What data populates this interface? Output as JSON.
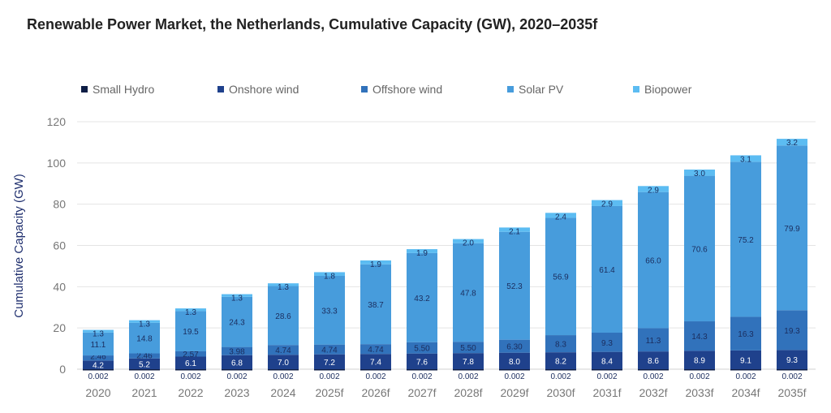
{
  "chart_data": {
    "type": "bar",
    "stacked": true,
    "title": "Renewable Power Market, the Netherlands, Cumulative Capacity (GW), 2020–2035f",
    "xlabel": "",
    "ylabel": "Cumulative Capacity (GW)",
    "ylim": [
      0,
      120
    ],
    "yticks": [
      0,
      20,
      40,
      60,
      80,
      100,
      120
    ],
    "grid": true,
    "legend_position": "top",
    "categories": [
      "2020",
      "2021",
      "2022",
      "2023",
      "2024",
      "2025f",
      "2026f",
      "2027f",
      "2028f",
      "2029f",
      "2030f",
      "2031f",
      "2032f",
      "2033f",
      "2034f",
      "2035f"
    ],
    "series": [
      {
        "name": "Small Hydro",
        "color": "#0e1d45",
        "labels": [
          "0.002",
          "0.002",
          "0.002",
          "0.002",
          "0.002",
          "0.002",
          "0.002",
          "0.002",
          "0.002",
          "0.002",
          "0.002",
          "0.002",
          "0.002",
          "0.002",
          "0.002",
          "0.002"
        ],
        "values": [
          0.002,
          0.002,
          0.002,
          0.002,
          0.002,
          0.002,
          0.002,
          0.002,
          0.002,
          0.002,
          0.002,
          0.002,
          0.002,
          0.002,
          0.002,
          0.002
        ]
      },
      {
        "name": "Onshore wind",
        "color": "#1f418c",
        "labels": [
          "4.2",
          "5.2",
          "6.1",
          "6.8",
          "7.0",
          "7.2",
          "7.4",
          "7.6",
          "7.8",
          "8.0",
          "8.2",
          "8.4",
          "8.6",
          "8.9",
          "9.1",
          "9.3"
        ],
        "values": [
          4.2,
          5.2,
          6.1,
          6.8,
          7.0,
          7.2,
          7.4,
          7.6,
          7.8,
          8.0,
          8.2,
          8.4,
          8.6,
          8.9,
          9.1,
          9.3
        ]
      },
      {
        "name": "Offshore wind",
        "color": "#3172bb",
        "labels": [
          "2.46",
          "2.46",
          "2.57",
          "3.98",
          "4.74",
          "4.74",
          "4.74",
          "5.50",
          "5.50",
          "6.30",
          "8.3",
          "9.3",
          "11.3",
          "14.3",
          "16.3",
          "19.3"
        ],
        "values": [
          2.46,
          2.46,
          2.57,
          3.98,
          4.74,
          4.74,
          4.74,
          5.5,
          5.5,
          6.3,
          8.3,
          9.3,
          11.3,
          14.3,
          16.3,
          19.3
        ]
      },
      {
        "name": "Solar PV",
        "color": "#479cdc",
        "labels": [
          "11.1",
          "14.8",
          "19.5",
          "24.3",
          "28.6",
          "33.3",
          "38.7",
          "43.2",
          "47.8",
          "52.3",
          "56.9",
          "61.4",
          "66.0",
          "70.6",
          "75.2",
          "79.9"
        ],
        "values": [
          11.1,
          14.8,
          19.5,
          24.3,
          28.6,
          33.3,
          38.7,
          43.2,
          47.8,
          52.3,
          56.9,
          61.4,
          66.0,
          70.6,
          75.2,
          79.9
        ]
      },
      {
        "name": "Biopower",
        "color": "#5cbcf2",
        "labels": [
          "1.3",
          "1.3",
          "1.3",
          "1.3",
          "1.3",
          "1.8",
          "1.9",
          "1.9",
          "2.0",
          "2.1",
          "2.4",
          "2.9",
          "2.9",
          "3.0",
          "3.1",
          "3.2"
        ],
        "values": [
          1.3,
          1.3,
          1.3,
          1.3,
          1.3,
          1.8,
          1.9,
          1.9,
          2.0,
          2.1,
          2.4,
          2.9,
          2.9,
          3.0,
          3.1,
          3.2
        ]
      }
    ]
  }
}
